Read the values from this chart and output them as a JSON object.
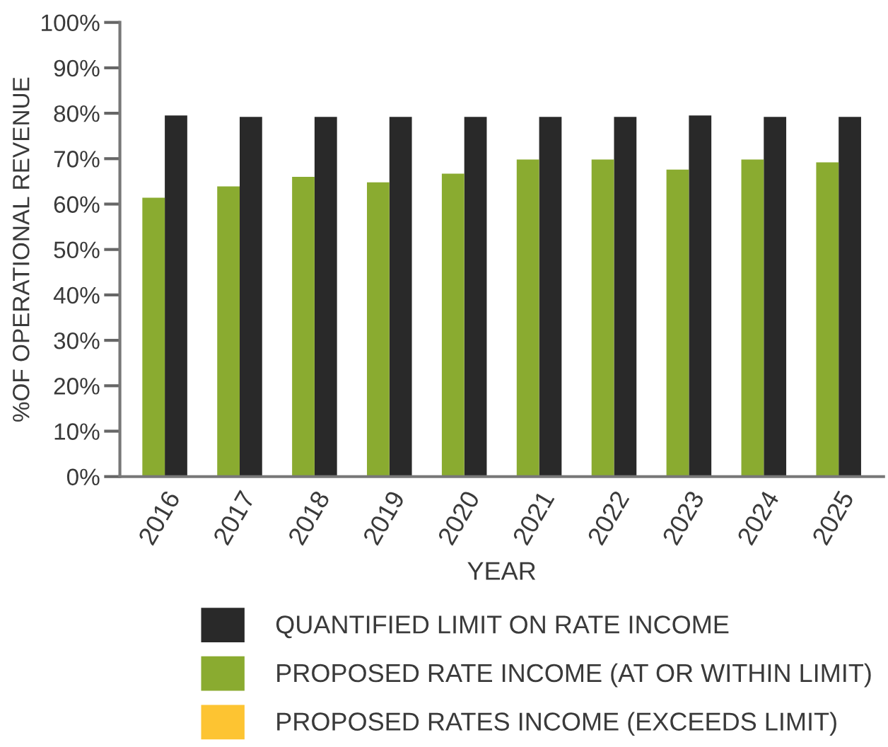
{
  "chart_data": {
    "type": "bar",
    "xlabel": "YEAR",
    "ylabel": "%OF OPERATIONAL REVENUE",
    "categories": [
      "2016",
      "2017",
      "2018",
      "2019",
      "2020",
      "2021",
      "2022",
      "2023",
      "2024",
      "2025"
    ],
    "series": [
      {
        "name": "QUANTIFIED LIMIT ON RATE INCOME",
        "color": "#292929",
        "values": [
          79.5,
          79.2,
          79.2,
          79.2,
          79.2,
          79.2,
          79.2,
          79.5,
          79.2,
          79.2
        ]
      },
      {
        "name": "PROPOSED RATE INCOME (AT OR WITHIN LIMIT)",
        "color": "#8aab30",
        "values": [
          61.4,
          63.9,
          66.0,
          64.8,
          66.7,
          69.8,
          69.8,
          67.6,
          69.8,
          69.2
        ]
      },
      {
        "name": "PROPOSED RATES INCOME (EXCEEDS LIMIT)",
        "color": "#fdc432",
        "values": [
          null,
          null,
          null,
          null,
          null,
          null,
          null,
          null,
          null,
          null
        ]
      }
    ],
    "ylim": [
      0,
      100
    ],
    "yticks": [
      {
        "value": 0,
        "label": "0%"
      },
      {
        "value": 10,
        "label": "10%"
      },
      {
        "value": 20,
        "label": "20%"
      },
      {
        "value": 30,
        "label": "30%"
      },
      {
        "value": 40,
        "label": "40%"
      },
      {
        "value": 50,
        "label": "50%"
      },
      {
        "value": 60,
        "label": "60%"
      },
      {
        "value": 70,
        "label": "70%"
      },
      {
        "value": 80,
        "label": "80%"
      },
      {
        "value": 90,
        "label": "90%"
      },
      {
        "value": 100,
        "label": "100%"
      }
    ],
    "grid": false,
    "legend": "bottom"
  }
}
